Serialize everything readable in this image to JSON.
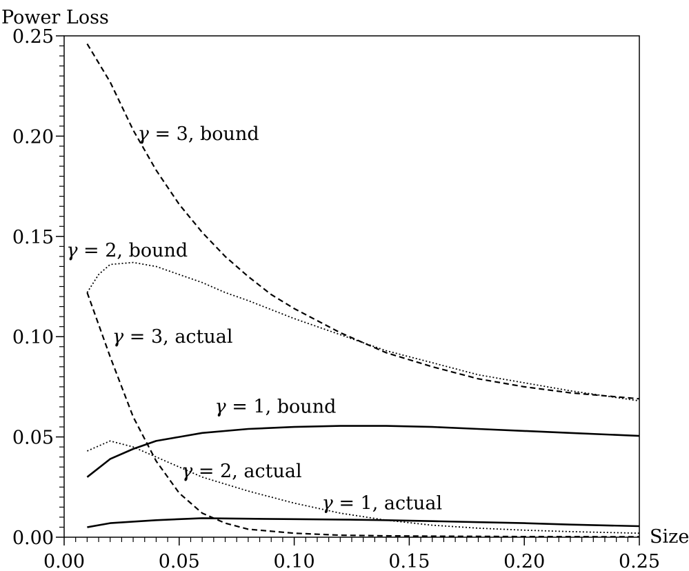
{
  "chart_data": {
    "type": "line",
    "ylabel": "Power Loss",
    "xlabel": "Size",
    "xlim": [
      0.0,
      0.25
    ],
    "ylim": [
      0.0,
      0.25
    ],
    "xticks": [
      "0.00",
      "0.05",
      "0.10",
      "0.15",
      "0.20",
      "0.25"
    ],
    "yticks": [
      "0.00",
      "0.05",
      "0.10",
      "0.15",
      "0.20",
      "0.25"
    ],
    "grid": false,
    "legend": "none (series labelled by in-plot annotations)",
    "series": [
      {
        "name": "γ = 3, bound",
        "style": "dashed",
        "x": [
          0.01,
          0.02,
          0.03,
          0.04,
          0.05,
          0.06,
          0.07,
          0.08,
          0.09,
          0.1,
          0.12,
          0.14,
          0.16,
          0.18,
          0.2,
          0.22,
          0.25
        ],
        "y": [
          0.246,
          0.227,
          0.203,
          0.183,
          0.166,
          0.152,
          0.14,
          0.13,
          0.121,
          0.114,
          0.102,
          0.092,
          0.085,
          0.079,
          0.075,
          0.072,
          0.069
        ]
      },
      {
        "name": "γ = 2, bound",
        "style": "dotted",
        "x": [
          0.01,
          0.015,
          0.02,
          0.03,
          0.04,
          0.05,
          0.06,
          0.07,
          0.08,
          0.1,
          0.12,
          0.14,
          0.16,
          0.18,
          0.2,
          0.22,
          0.25
        ],
        "y": [
          0.122,
          0.131,
          0.136,
          0.137,
          0.135,
          0.131,
          0.127,
          0.122,
          0.118,
          0.109,
          0.101,
          0.093,
          0.087,
          0.081,
          0.077,
          0.073,
          0.068
        ]
      },
      {
        "name": "γ = 3, actual",
        "style": "dashed",
        "x": [
          0.01,
          0.02,
          0.03,
          0.04,
          0.05,
          0.06,
          0.07,
          0.08,
          0.1,
          0.12,
          0.14,
          0.16,
          0.2,
          0.25
        ],
        "y": [
          0.122,
          0.09,
          0.06,
          0.038,
          0.022,
          0.012,
          0.007,
          0.004,
          0.002,
          0.001,
          0.0007,
          0.0005,
          0.0003,
          0.0002
        ]
      },
      {
        "name": "γ = 1, bound",
        "style": "solid",
        "x": [
          0.01,
          0.02,
          0.03,
          0.04,
          0.05,
          0.06,
          0.08,
          0.1,
          0.12,
          0.14,
          0.16,
          0.18,
          0.2,
          0.22,
          0.25
        ],
        "y": [
          0.03,
          0.039,
          0.044,
          0.048,
          0.05,
          0.052,
          0.054,
          0.055,
          0.0555,
          0.0555,
          0.055,
          0.054,
          0.053,
          0.052,
          0.0505
        ]
      },
      {
        "name": "γ = 2, actual",
        "style": "dotted",
        "x": [
          0.01,
          0.02,
          0.03,
          0.04,
          0.05,
          0.06,
          0.08,
          0.1,
          0.12,
          0.14,
          0.16,
          0.18,
          0.2,
          0.22,
          0.25
        ],
        "y": [
          0.043,
          0.048,
          0.045,
          0.04,
          0.035,
          0.03,
          0.023,
          0.017,
          0.012,
          0.0085,
          0.006,
          0.0045,
          0.0035,
          0.0028,
          0.002
        ]
      },
      {
        "name": "γ = 1, actual",
        "style": "solid",
        "x": [
          0.01,
          0.02,
          0.04,
          0.06,
          0.08,
          0.1,
          0.12,
          0.14,
          0.16,
          0.18,
          0.2,
          0.22,
          0.25
        ],
        "y": [
          0.005,
          0.007,
          0.0085,
          0.0095,
          0.0092,
          0.009,
          0.0088,
          0.0085,
          0.008,
          0.0075,
          0.007,
          0.0063,
          0.0055
        ]
      }
    ],
    "annotations": [
      {
        "gamma": "γ",
        "text": " = 3, bound",
        "x": 0.032,
        "y": 0.198
      },
      {
        "gamma": "γ",
        "text": " = 2, bound",
        "x": 0.001,
        "y": 0.14
      },
      {
        "gamma": "γ",
        "text": " = 3, actual",
        "x": 0.021,
        "y": 0.097
      },
      {
        "gamma": "γ",
        "text": " = 1, bound",
        "x": 0.0655,
        "y": 0.062
      },
      {
        "gamma": "γ",
        "text": " = 2, actual",
        "x": 0.051,
        "y": 0.03
      },
      {
        "gamma": "γ",
        "text": " = 1, actual",
        "x": 0.112,
        "y": 0.014
      }
    ]
  }
}
